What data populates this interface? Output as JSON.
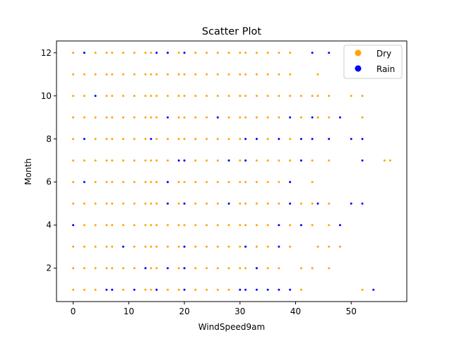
{
  "chart_data": {
    "type": "scatter",
    "title": "Scatter Plot",
    "xlabel": "WindSpeed9am",
    "ylabel": "Month",
    "xlim": [
      -3,
      60
    ],
    "ylim": [
      0.45,
      12.55
    ],
    "xticks": [
      0,
      10,
      20,
      30,
      40,
      50
    ],
    "yticks": [
      2,
      4,
      6,
      8,
      10,
      12
    ],
    "grid": false,
    "legend_position": "top-right",
    "x_levels": [
      0,
      2,
      4,
      6,
      7,
      9,
      11,
      13,
      14,
      15,
      17,
      19,
      20,
      22,
      24,
      26,
      28,
      30,
      31,
      33,
      35,
      37,
      39,
      41,
      43,
      44,
      46,
      48,
      50,
      52,
      54,
      56,
      57
    ],
    "series": [
      {
        "name": "Dry",
        "color": "#FFA500",
        "points": [
          [
            0,
            12
          ],
          [
            2,
            12
          ],
          [
            4,
            12
          ],
          [
            6,
            12
          ],
          [
            7,
            12
          ],
          [
            9,
            12
          ],
          [
            11,
            12
          ],
          [
            13,
            12
          ],
          [
            14,
            12
          ],
          [
            15,
            12
          ],
          [
            17,
            12
          ],
          [
            19,
            12
          ],
          [
            20,
            12
          ],
          [
            22,
            12
          ],
          [
            24,
            12
          ],
          [
            26,
            12
          ],
          [
            28,
            12
          ],
          [
            30,
            12
          ],
          [
            31,
            12
          ],
          [
            33,
            12
          ],
          [
            35,
            12
          ],
          [
            37,
            12
          ],
          [
            39,
            12
          ],
          [
            0,
            11
          ],
          [
            2,
            11
          ],
          [
            4,
            11
          ],
          [
            6,
            11
          ],
          [
            7,
            11
          ],
          [
            9,
            11
          ],
          [
            11,
            11
          ],
          [
            13,
            11
          ],
          [
            14,
            11
          ],
          [
            15,
            11
          ],
          [
            17,
            11
          ],
          [
            19,
            11
          ],
          [
            20,
            11
          ],
          [
            22,
            11
          ],
          [
            24,
            11
          ],
          [
            26,
            11
          ],
          [
            28,
            11
          ],
          [
            30,
            11
          ],
          [
            31,
            11
          ],
          [
            33,
            11
          ],
          [
            35,
            11
          ],
          [
            37,
            11
          ],
          [
            39,
            11
          ],
          [
            44,
            11
          ],
          [
            0,
            10
          ],
          [
            2,
            10
          ],
          [
            6,
            10
          ],
          [
            7,
            10
          ],
          [
            9,
            10
          ],
          [
            11,
            10
          ],
          [
            13,
            10
          ],
          [
            14,
            10
          ],
          [
            15,
            10
          ],
          [
            17,
            10
          ],
          [
            19,
            10
          ],
          [
            20,
            10
          ],
          [
            22,
            10
          ],
          [
            24,
            10
          ],
          [
            26,
            10
          ],
          [
            28,
            10
          ],
          [
            30,
            10
          ],
          [
            31,
            10
          ],
          [
            33,
            10
          ],
          [
            35,
            10
          ],
          [
            37,
            10
          ],
          [
            39,
            10
          ],
          [
            41,
            10
          ],
          [
            43,
            10
          ],
          [
            44,
            10
          ],
          [
            46,
            10
          ],
          [
            50,
            10
          ],
          [
            52,
            10
          ],
          [
            0,
            9
          ],
          [
            2,
            9
          ],
          [
            4,
            9
          ],
          [
            6,
            9
          ],
          [
            7,
            9
          ],
          [
            9,
            9
          ],
          [
            11,
            9
          ],
          [
            13,
            9
          ],
          [
            14,
            9
          ],
          [
            15,
            9
          ],
          [
            19,
            9
          ],
          [
            20,
            9
          ],
          [
            22,
            9
          ],
          [
            24,
            9
          ],
          [
            28,
            9
          ],
          [
            30,
            9
          ],
          [
            31,
            9
          ],
          [
            33,
            9
          ],
          [
            35,
            9
          ],
          [
            37,
            9
          ],
          [
            41,
            9
          ],
          [
            44,
            9
          ],
          [
            46,
            9
          ],
          [
            52,
            9
          ],
          [
            0,
            8
          ],
          [
            4,
            8
          ],
          [
            6,
            8
          ],
          [
            7,
            8
          ],
          [
            9,
            8
          ],
          [
            11,
            8
          ],
          [
            13,
            8
          ],
          [
            15,
            8
          ],
          [
            17,
            8
          ],
          [
            19,
            8
          ],
          [
            20,
            8
          ],
          [
            22,
            8
          ],
          [
            24,
            8
          ],
          [
            26,
            8
          ],
          [
            28,
            8
          ],
          [
            30,
            8
          ],
          [
            33,
            8
          ],
          [
            35,
            8
          ],
          [
            39,
            8
          ],
          [
            0,
            7
          ],
          [
            2,
            7
          ],
          [
            4,
            7
          ],
          [
            6,
            7
          ],
          [
            7,
            7
          ],
          [
            9,
            7
          ],
          [
            11,
            7
          ],
          [
            13,
            7
          ],
          [
            14,
            7
          ],
          [
            15,
            7
          ],
          [
            17,
            7
          ],
          [
            19,
            7
          ],
          [
            20,
            7
          ],
          [
            22,
            7
          ],
          [
            24,
            7
          ],
          [
            26,
            7
          ],
          [
            28,
            7
          ],
          [
            30,
            7
          ],
          [
            31,
            7
          ],
          [
            33,
            7
          ],
          [
            35,
            7
          ],
          [
            37,
            7
          ],
          [
            39,
            7
          ],
          [
            43,
            7
          ],
          [
            46,
            7
          ],
          [
            56,
            7
          ],
          [
            57,
            7
          ],
          [
            0,
            6
          ],
          [
            4,
            6
          ],
          [
            6,
            6
          ],
          [
            7,
            6
          ],
          [
            9,
            6
          ],
          [
            11,
            6
          ],
          [
            13,
            6
          ],
          [
            14,
            6
          ],
          [
            15,
            6
          ],
          [
            17,
            6
          ],
          [
            19,
            6
          ],
          [
            20,
            6
          ],
          [
            22,
            6
          ],
          [
            24,
            6
          ],
          [
            26,
            6
          ],
          [
            28,
            6
          ],
          [
            30,
            6
          ],
          [
            31,
            6
          ],
          [
            33,
            6
          ],
          [
            35,
            6
          ],
          [
            37,
            6
          ],
          [
            39,
            6
          ],
          [
            43,
            6
          ],
          [
            0,
            5
          ],
          [
            2,
            5
          ],
          [
            4,
            5
          ],
          [
            6,
            5
          ],
          [
            7,
            5
          ],
          [
            9,
            5
          ],
          [
            11,
            5
          ],
          [
            13,
            5
          ],
          [
            14,
            5
          ],
          [
            15,
            5
          ],
          [
            17,
            5
          ],
          [
            19,
            5
          ],
          [
            20,
            5
          ],
          [
            22,
            5
          ],
          [
            24,
            5
          ],
          [
            26,
            5
          ],
          [
            28,
            5
          ],
          [
            30,
            5
          ],
          [
            31,
            5
          ],
          [
            33,
            5
          ],
          [
            35,
            5
          ],
          [
            37,
            5
          ],
          [
            39,
            5
          ],
          [
            41,
            5
          ],
          [
            43,
            5
          ],
          [
            46,
            5
          ],
          [
            2,
            4
          ],
          [
            4,
            4
          ],
          [
            6,
            4
          ],
          [
            7,
            4
          ],
          [
            9,
            4
          ],
          [
            11,
            4
          ],
          [
            13,
            4
          ],
          [
            14,
            4
          ],
          [
            15,
            4
          ],
          [
            17,
            4
          ],
          [
            19,
            4
          ],
          [
            20,
            4
          ],
          [
            22,
            4
          ],
          [
            24,
            4
          ],
          [
            26,
            4
          ],
          [
            28,
            4
          ],
          [
            30,
            4
          ],
          [
            31,
            4
          ],
          [
            33,
            4
          ],
          [
            35,
            4
          ],
          [
            39,
            4
          ],
          [
            43,
            4
          ],
          [
            46,
            4
          ],
          [
            0,
            3
          ],
          [
            2,
            3
          ],
          [
            4,
            3
          ],
          [
            6,
            3
          ],
          [
            7,
            3
          ],
          [
            11,
            3
          ],
          [
            13,
            3
          ],
          [
            14,
            3
          ],
          [
            15,
            3
          ],
          [
            17,
            3
          ],
          [
            19,
            3
          ],
          [
            20,
            3
          ],
          [
            22,
            3
          ],
          [
            24,
            3
          ],
          [
            26,
            3
          ],
          [
            28,
            3
          ],
          [
            30,
            3
          ],
          [
            31,
            3
          ],
          [
            33,
            3
          ],
          [
            35,
            3
          ],
          [
            39,
            3
          ],
          [
            44,
            3
          ],
          [
            46,
            3
          ],
          [
            48,
            3
          ],
          [
            0,
            2
          ],
          [
            2,
            2
          ],
          [
            4,
            2
          ],
          [
            6,
            2
          ],
          [
            7,
            2
          ],
          [
            9,
            2
          ],
          [
            11,
            2
          ],
          [
            13,
            2
          ],
          [
            14,
            2
          ],
          [
            15,
            2
          ],
          [
            19,
            2
          ],
          [
            20,
            2
          ],
          [
            22,
            2
          ],
          [
            24,
            2
          ],
          [
            26,
            2
          ],
          [
            28,
            2
          ],
          [
            30,
            2
          ],
          [
            31,
            2
          ],
          [
            33,
            2
          ],
          [
            35,
            2
          ],
          [
            37,
            2
          ],
          [
            41,
            2
          ],
          [
            43,
            2
          ],
          [
            46,
            2
          ],
          [
            0,
            1
          ],
          [
            2,
            1
          ],
          [
            4,
            1
          ],
          [
            7,
            1
          ],
          [
            9,
            1
          ],
          [
            13,
            1
          ],
          [
            14,
            1
          ],
          [
            15,
            1
          ],
          [
            17,
            1
          ],
          [
            19,
            1
          ],
          [
            22,
            1
          ],
          [
            24,
            1
          ],
          [
            26,
            1
          ],
          [
            28,
            1
          ],
          [
            41,
            1
          ],
          [
            52,
            1
          ]
        ]
      },
      {
        "name": "Rain",
        "color": "#0000FF",
        "points": [
          [
            2,
            12
          ],
          [
            15,
            12
          ],
          [
            17,
            12
          ],
          [
            20,
            12
          ],
          [
            43,
            12
          ],
          [
            46,
            12
          ],
          [
            4,
            10
          ],
          [
            17,
            9
          ],
          [
            26,
            9
          ],
          [
            39,
            9
          ],
          [
            43,
            9
          ],
          [
            48,
            9
          ],
          [
            2,
            8
          ],
          [
            14,
            8
          ],
          [
            31,
            8
          ],
          [
            33,
            8
          ],
          [
            37,
            8
          ],
          [
            41,
            8
          ],
          [
            43,
            8
          ],
          [
            46,
            8
          ],
          [
            50,
            8
          ],
          [
            52,
            8
          ],
          [
            19,
            7
          ],
          [
            20,
            7
          ],
          [
            28,
            7
          ],
          [
            31,
            7
          ],
          [
            41,
            7
          ],
          [
            52,
            7
          ],
          [
            2,
            6
          ],
          [
            17,
            6
          ],
          [
            39,
            6
          ],
          [
            17,
            5
          ],
          [
            20,
            5
          ],
          [
            28,
            5
          ],
          [
            39,
            5
          ],
          [
            44,
            5
          ],
          [
            50,
            5
          ],
          [
            52,
            5
          ],
          [
            0,
            4
          ],
          [
            37,
            4
          ],
          [
            41,
            4
          ],
          [
            48,
            4
          ],
          [
            9,
            3
          ],
          [
            20,
            3
          ],
          [
            31,
            3
          ],
          [
            37,
            3
          ],
          [
            13,
            2
          ],
          [
            17,
            2
          ],
          [
            20,
            2
          ],
          [
            33,
            2
          ],
          [
            6,
            1
          ],
          [
            7,
            1
          ],
          [
            11,
            1
          ],
          [
            15,
            1
          ],
          [
            20,
            1
          ],
          [
            30,
            1
          ],
          [
            31,
            1
          ],
          [
            33,
            1
          ],
          [
            35,
            1
          ],
          [
            37,
            1
          ],
          [
            39,
            1
          ],
          [
            54,
            1
          ]
        ]
      }
    ]
  }
}
